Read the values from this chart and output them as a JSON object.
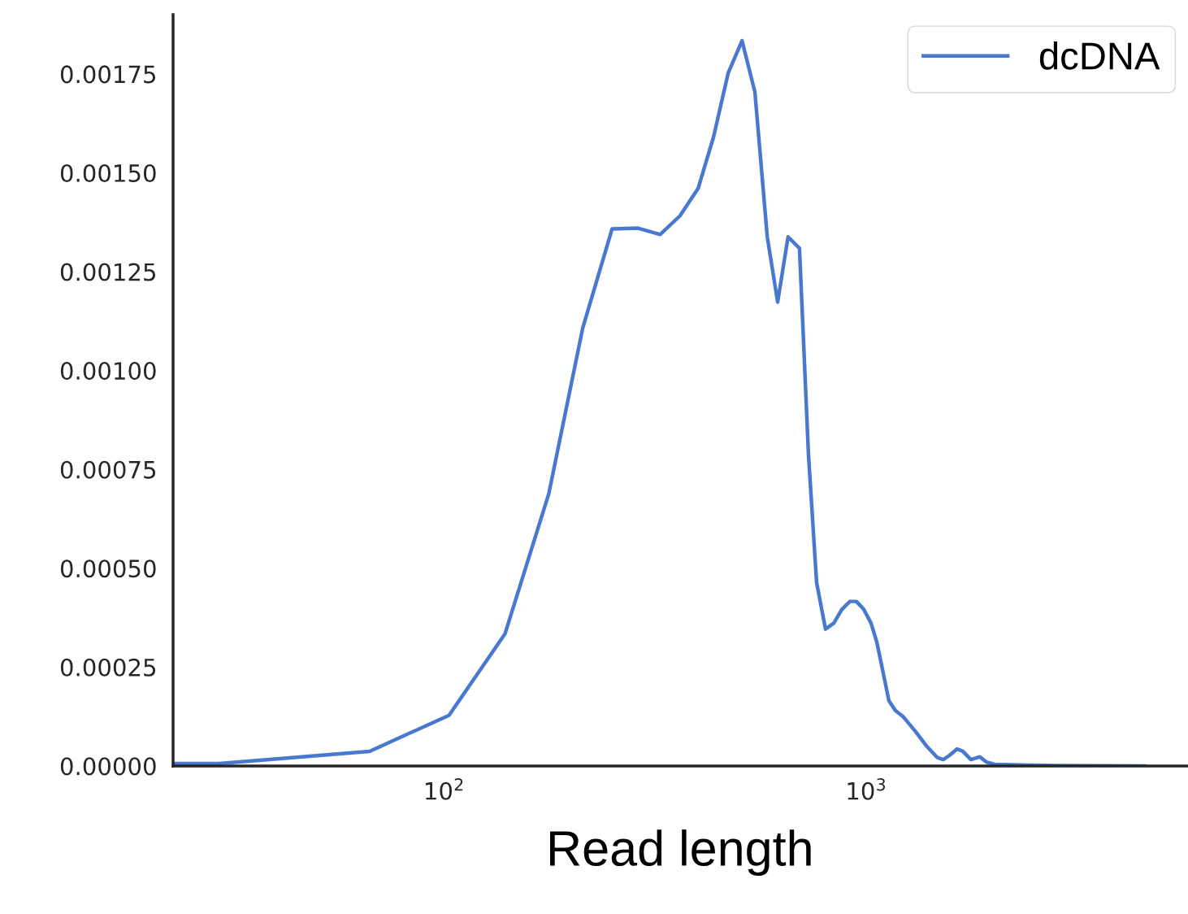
{
  "chart_data": {
    "type": "line",
    "xlabel": "Read length",
    "log": "x",
    "legend": "top right",
    "grid": false,
    "xlim": [
      22.8,
      5750
    ],
    "xticks": [
      {
        "value": 100,
        "label": "10$^{2}$"
      },
      {
        "value": 1000,
        "label": "10$^{3}$"
      }
    ],
    "ylim": [
      0,
      0.0019
    ],
    "yticks": [
      {
        "value": 0,
        "label": "0.00000"
      },
      {
        "value": 0.00025,
        "label": "0.00025"
      },
      {
        "value": 0.0005,
        "label": "0.00050"
      },
      {
        "value": 0.00075,
        "label": "0.00075"
      },
      {
        "value": 0.001,
        "label": "0.00100"
      },
      {
        "value": 0.00125,
        "label": "0.00125"
      },
      {
        "value": 0.0015,
        "label": "0.00150"
      },
      {
        "value": 0.00175,
        "label": "0.00175"
      }
    ],
    "series": [
      {
        "name": "dcDNA",
        "color": "#4878d0",
        "x": [
          22.8,
          29.3,
          66.6,
          102.7,
          139.4,
          177,
          213,
          250,
          288,
          325,
          362,
          400,
          435,
          471,
          508,
          545,
          583,
          617,
          653,
          695,
          730,
          763,
          801,
          838,
          876,
          915,
          948,
          987,
          1027,
          1060,
          1132,
          1173,
          1225,
          1309,
          1393,
          1475,
          1523,
          1577,
          1642,
          1694,
          1771,
          1859,
          1926,
          2015,
          2455,
          2806,
          4570
        ],
        "values": [
          6e-06,
          6e-06,
          3.7e-05,
          0.000128,
          0.000334,
          0.000688,
          0.001107,
          0.001358,
          0.00136,
          0.001344,
          0.001391,
          0.001461,
          0.001591,
          0.001752,
          0.001834,
          0.001704,
          0.001338,
          0.001173,
          0.001338,
          0.001309,
          0.000787,
          0.000464,
          0.000346,
          0.000361,
          0.000396,
          0.000416,
          0.000416,
          0.000396,
          0.000361,
          0.000313,
          0.000165,
          0.00014,
          0.000124,
          8.7e-05,
          4.9e-05,
          2.1e-05,
          1.6e-05,
          2.7e-05,
          4.3e-05,
          3.7e-05,
          1.6e-05,
          2.3e-05,
          1e-05,
          4e-06,
          2e-06,
          1e-06,
          0
        ]
      }
    ]
  }
}
